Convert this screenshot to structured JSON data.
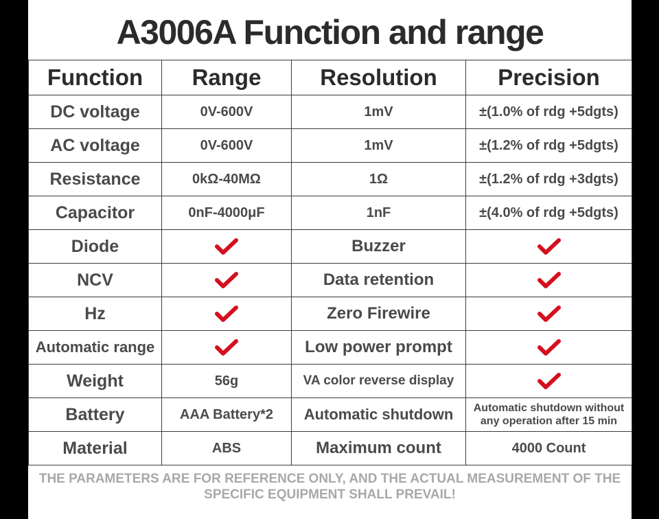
{
  "title": "A3006A Function and range",
  "headers": [
    "Function",
    "Range",
    "Resolution",
    "Precision"
  ],
  "rows": [
    {
      "function": "DC voltage",
      "range": "0V-600V",
      "resolution": "1mV",
      "precision": "±(1.0% of rdg +5dgts)"
    },
    {
      "function": "AC voltage",
      "range": "0V-600V",
      "resolution": "1mV",
      "precision": "±(1.2% of rdg +5dgts)"
    },
    {
      "function": "Resistance",
      "range": "0kΩ-40MΩ",
      "resolution": "1Ω",
      "precision": "±(1.2% of rdg +3dgts)"
    },
    {
      "function": "Capacitor",
      "range": "0nF-4000μF",
      "resolution": "1nF",
      "precision": "±(4.0% of rdg +5dgts)"
    },
    {
      "function": "Diode",
      "range_check": true,
      "resolution": "Buzzer",
      "precision_check": true
    },
    {
      "function": "NCV",
      "range_check": true,
      "resolution": "Data retention",
      "precision_check": true
    },
    {
      "function": "Hz",
      "range_check": true,
      "resolution": "Zero Firewire",
      "precision_check": true
    },
    {
      "function": "Automatic range",
      "range_check": true,
      "resolution": "Low power prompt",
      "precision_check": true
    },
    {
      "function": "Weight",
      "range": "56g",
      "resolution": "VA color reverse display",
      "precision_check": true
    },
    {
      "function": "Battery",
      "range": "AAA Battery*2",
      "resolution": "Automatic shutdown",
      "precision": "Automatic shutdown without any operation after 15 min"
    },
    {
      "function": "Material",
      "range": "ABS",
      "resolution": "Maximum count",
      "precision": "4000 Count"
    }
  ],
  "check_color": "#d4101f",
  "check_icon": "check-icon",
  "footnote": "THE PARAMETERS ARE FOR REFERENCE ONLY, AND THE ACTUAL MEASUREMENT OF THE SPECIFIC EQUIPMENT SHALL PREVAIL!"
}
